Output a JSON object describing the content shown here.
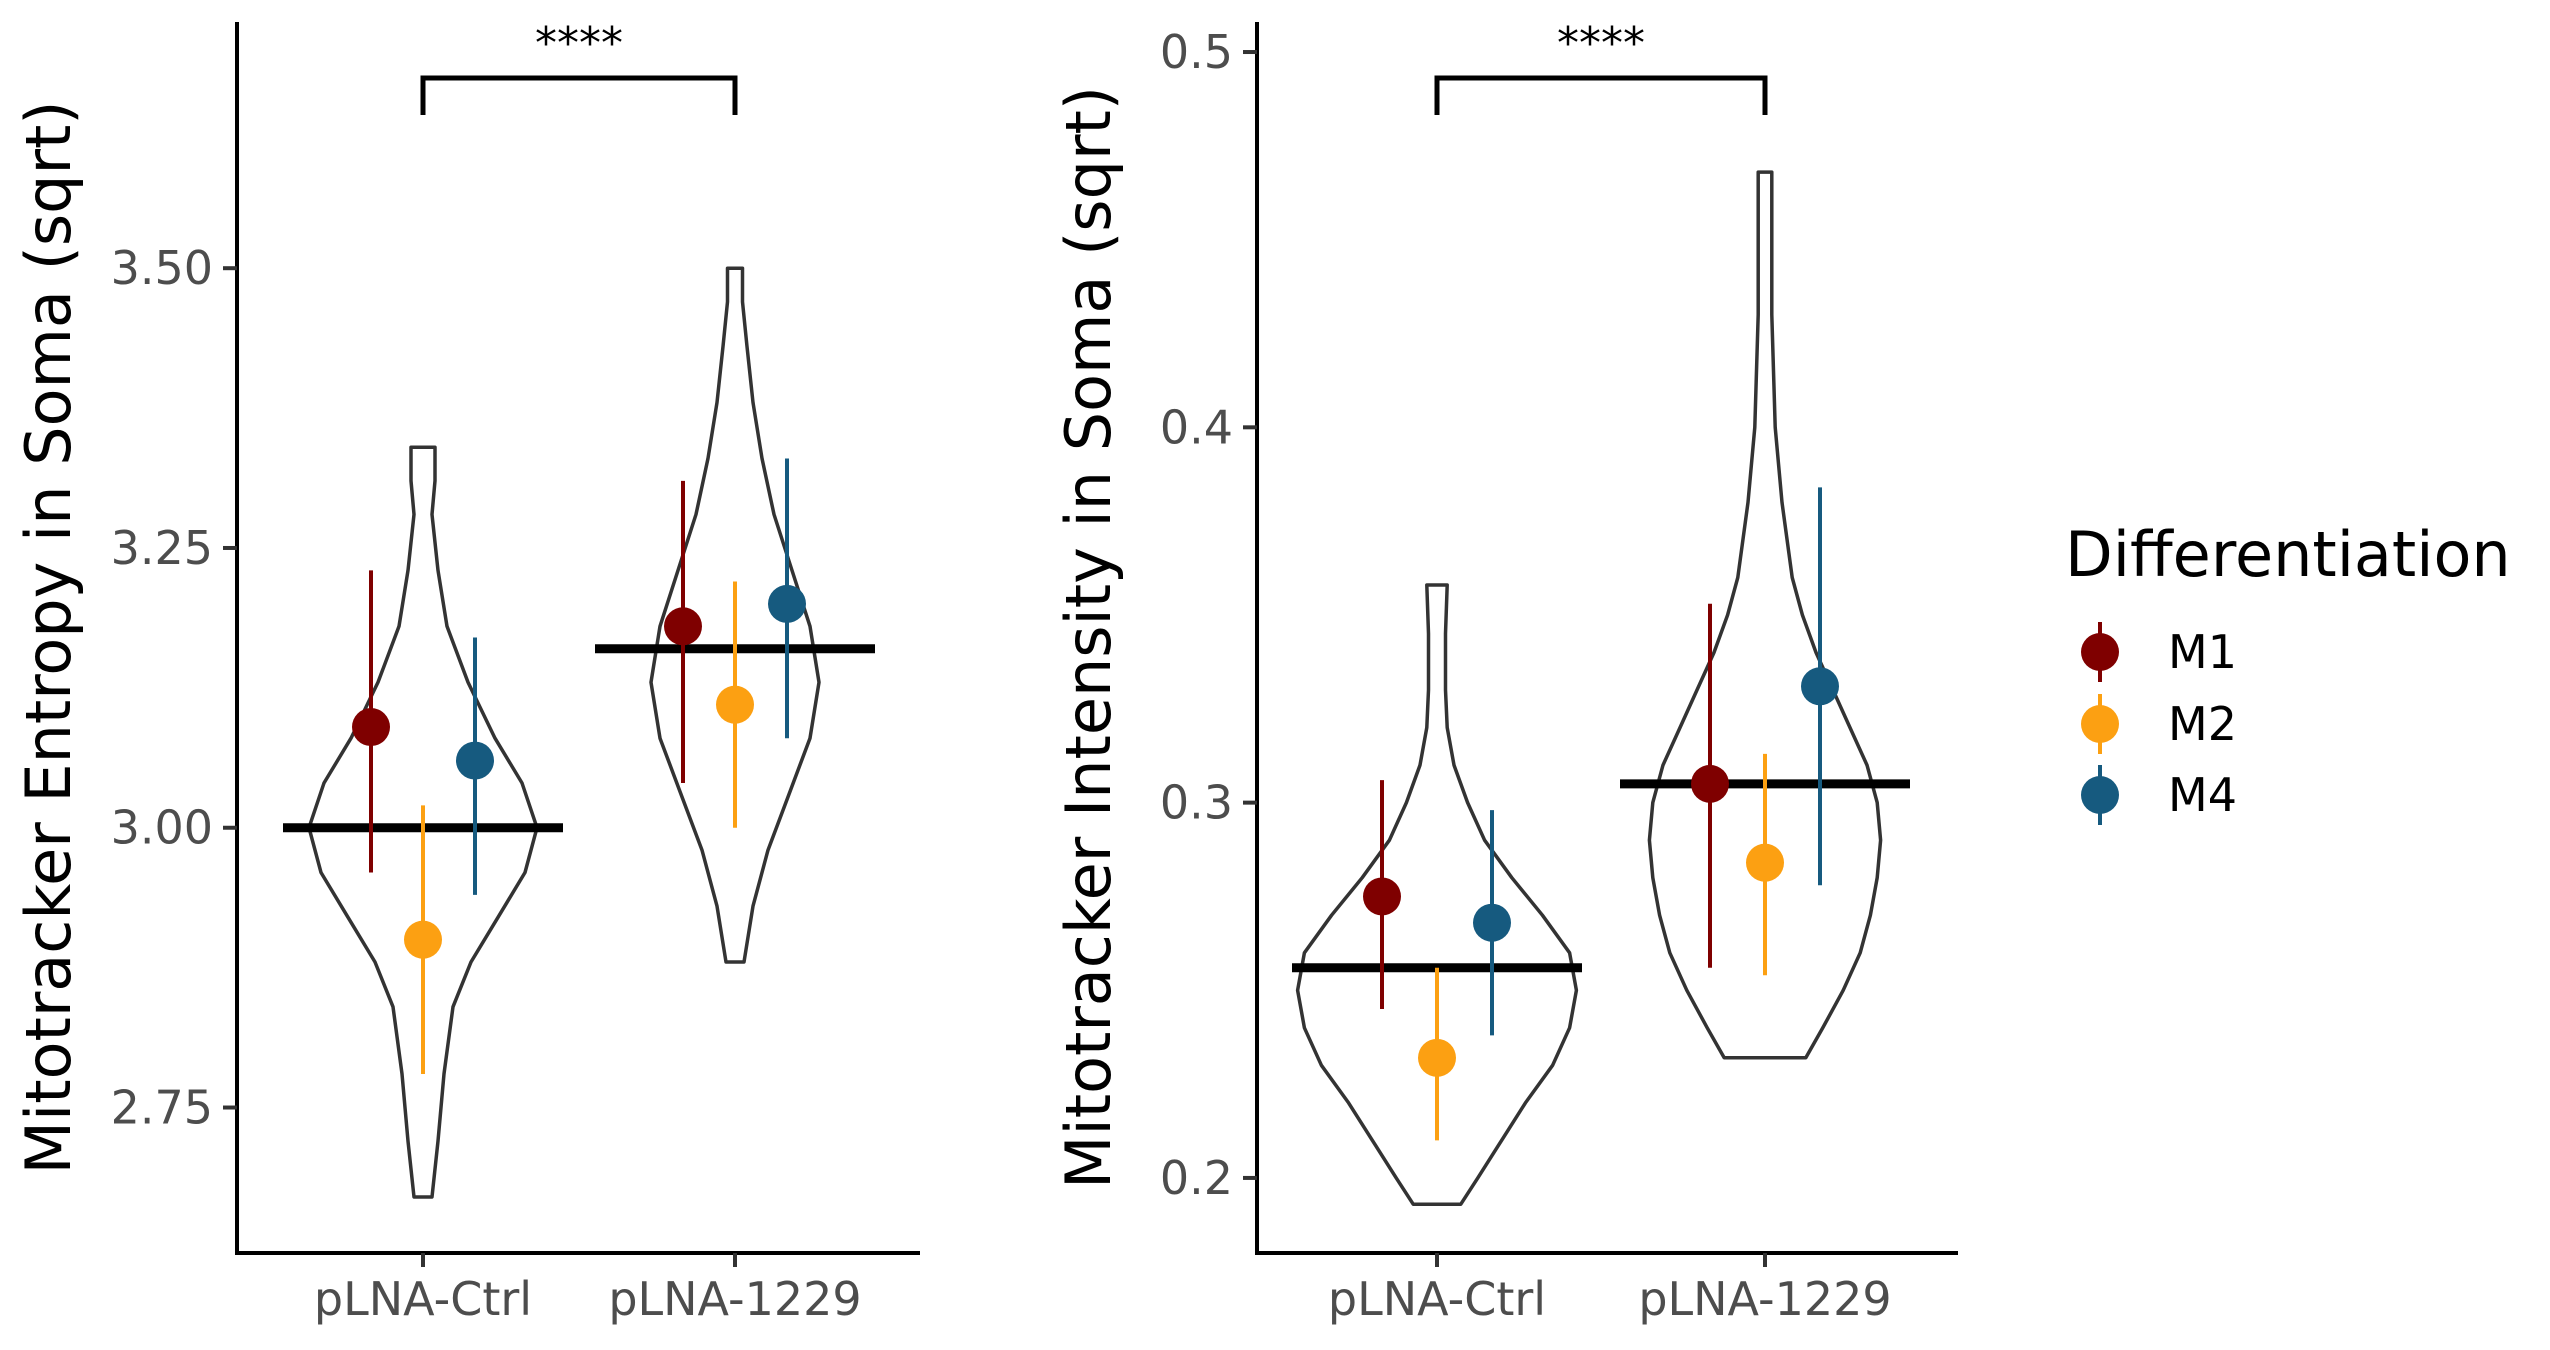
{
  "chart_data": [
    {
      "type": "violin",
      "ylabel": "Mitotracker Entropy in Soma (sqrt)",
      "xlabel": "",
      "categories": [
        "pLNA-Ctrl",
        "pLNA-1229"
      ],
      "ylim": [
        2.62,
        3.72
      ],
      "yticks": [
        2.75,
        3.0,
        3.25,
        3.5
      ],
      "ytick_labels": [
        "2.75",
        "3.00",
        "3.25",
        "3.50"
      ],
      "significance": {
        "label": "****",
        "from": "pLNA-Ctrl",
        "to": "pLNA-1229"
      },
      "violins": [
        {
          "category": "pLNA-Ctrl",
          "mean": 3.0,
          "profile": [
            [
              2.67,
              0.03
            ],
            [
              2.72,
              0.05
            ],
            [
              2.78,
              0.07
            ],
            [
              2.84,
              0.1
            ],
            [
              2.88,
              0.16
            ],
            [
              2.92,
              0.25
            ],
            [
              2.96,
              0.34
            ],
            [
              3.0,
              0.38
            ],
            [
              3.04,
              0.33
            ],
            [
              3.08,
              0.24
            ],
            [
              3.13,
              0.15
            ],
            [
              3.18,
              0.08
            ],
            [
              3.23,
              0.05
            ],
            [
              3.28,
              0.03
            ],
            [
              3.31,
              0.04
            ],
            [
              3.34,
              0.04
            ]
          ]
        },
        {
          "category": "pLNA-1229",
          "mean": 3.16,
          "profile": [
            [
              2.88,
              0.03
            ],
            [
              2.93,
              0.06
            ],
            [
              2.98,
              0.11
            ],
            [
              3.03,
              0.18
            ],
            [
              3.08,
              0.25
            ],
            [
              3.13,
              0.28
            ],
            [
              3.18,
              0.25
            ],
            [
              3.23,
              0.19
            ],
            [
              3.28,
              0.13
            ],
            [
              3.33,
              0.09
            ],
            [
              3.38,
              0.06
            ],
            [
              3.43,
              0.04
            ],
            [
              3.47,
              0.025
            ],
            [
              3.5,
              0.025
            ]
          ]
        }
      ],
      "series": [
        {
          "name": "M1",
          "color": "#7f0000",
          "points": [
            {
              "category": "pLNA-Ctrl",
              "y": 3.09,
              "ymin": 2.96,
              "ymax": 3.23
            },
            {
              "category": "pLNA-1229",
              "y": 3.18,
              "ymin": 3.04,
              "ymax": 3.31
            }
          ]
        },
        {
          "name": "M2",
          "color": "#fca012",
          "points": [
            {
              "category": "pLNA-Ctrl",
              "y": 2.9,
              "ymin": 2.78,
              "ymax": 3.02
            },
            {
              "category": "pLNA-1229",
              "y": 3.11,
              "ymin": 3.0,
              "ymax": 3.22
            }
          ]
        },
        {
          "name": "M4",
          "color": "#165a7f",
          "points": [
            {
              "category": "pLNA-Ctrl",
              "y": 3.06,
              "ymin": 2.94,
              "ymax": 3.17
            },
            {
              "category": "pLNA-1229",
              "y": 3.2,
              "ymin": 3.08,
              "ymax": 3.33
            }
          ]
        }
      ]
    },
    {
      "type": "violin",
      "ylabel": "Mitotracker Intensity in Soma (sqrt)",
      "xlabel": "",
      "categories": [
        "pLNA-Ctrl",
        "pLNA-1229"
      ],
      "ylim": [
        0.18,
        0.508
      ],
      "yticks": [
        0.2,
        0.3,
        0.4,
        0.5
      ],
      "ytick_labels": [
        "0.2",
        "0.3",
        "0.4",
        "0.5"
      ],
      "significance": {
        "label": "****",
        "from": "pLNA-Ctrl",
        "to": "pLNA-1229"
      },
      "violins": [
        {
          "category": "pLNA-Ctrl",
          "mean": 0.256,
          "profile": [
            [
              0.193,
              0.07
            ],
            [
              0.2,
              0.12
            ],
            [
              0.21,
              0.19
            ],
            [
              0.22,
              0.26
            ],
            [
              0.23,
              0.34
            ],
            [
              0.24,
              0.39
            ],
            [
              0.25,
              0.41
            ],
            [
              0.26,
              0.39
            ],
            [
              0.27,
              0.31
            ],
            [
              0.28,
              0.22
            ],
            [
              0.29,
              0.14
            ],
            [
              0.3,
              0.09
            ],
            [
              0.31,
              0.05
            ],
            [
              0.32,
              0.03
            ],
            [
              0.33,
              0.025
            ],
            [
              0.345,
              0.025
            ],
            [
              0.358,
              0.03
            ]
          ]
        },
        {
          "category": "pLNA-1229",
          "mean": 0.305,
          "profile": [
            [
              0.232,
              0.12
            ],
            [
              0.24,
              0.17
            ],
            [
              0.25,
              0.23
            ],
            [
              0.26,
              0.28
            ],
            [
              0.27,
              0.31
            ],
            [
              0.28,
              0.33
            ],
            [
              0.29,
              0.34
            ],
            [
              0.3,
              0.33
            ],
            [
              0.31,
              0.3
            ],
            [
              0.32,
              0.25
            ],
            [
              0.33,
              0.2
            ],
            [
              0.34,
              0.15
            ],
            [
              0.35,
              0.11
            ],
            [
              0.36,
              0.08
            ],
            [
              0.38,
              0.05
            ],
            [
              0.4,
              0.03
            ],
            [
              0.43,
              0.02
            ],
            [
              0.468,
              0.02
            ]
          ]
        }
      ],
      "series": [
        {
          "name": "M1",
          "color": "#7f0000",
          "points": [
            {
              "category": "pLNA-Ctrl",
              "y": 0.275,
              "ymin": 0.245,
              "ymax": 0.306
            },
            {
              "category": "pLNA-1229",
              "y": 0.305,
              "ymin": 0.256,
              "ymax": 0.353
            }
          ]
        },
        {
          "name": "M2",
          "color": "#fca012",
          "points": [
            {
              "category": "pLNA-Ctrl",
              "y": 0.232,
              "ymin": 0.21,
              "ymax": 0.256
            },
            {
              "category": "pLNA-1229",
              "y": 0.284,
              "ymin": 0.254,
              "ymax": 0.313
            }
          ]
        },
        {
          "name": "M4",
          "color": "#165a7f",
          "points": [
            {
              "category": "pLNA-Ctrl",
              "y": 0.268,
              "ymin": 0.238,
              "ymax": 0.298
            },
            {
              "category": "pLNA-1229",
              "y": 0.331,
              "ymin": 0.278,
              "ymax": 0.384
            }
          ]
        }
      ]
    }
  ],
  "legend": {
    "title": "Differentiation",
    "items": [
      {
        "label": "M1",
        "color": "#7f0000"
      },
      {
        "label": "M2",
        "color": "#fca012"
      },
      {
        "label": "M4",
        "color": "#165a7f"
      }
    ]
  }
}
